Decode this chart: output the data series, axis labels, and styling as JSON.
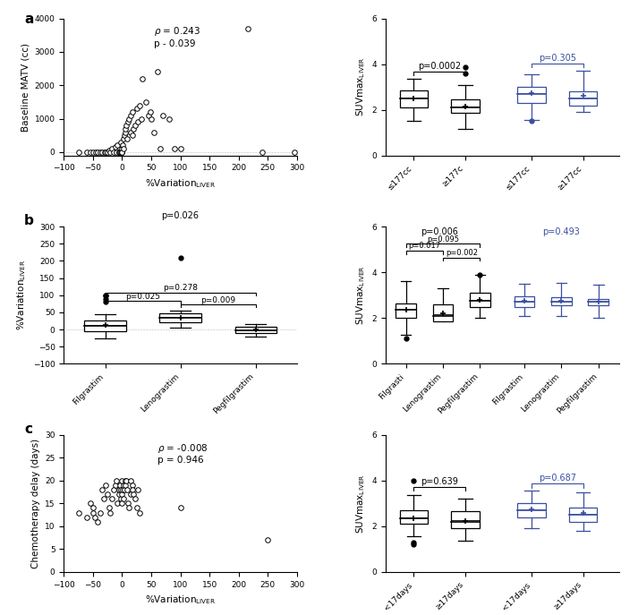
{
  "panel_a_scatter_x": [
    -75,
    -60,
    -55,
    -50,
    -45,
    -42,
    -38,
    -35,
    -30,
    -28,
    -25,
    -22,
    -20,
    -18,
    -15,
    -12,
    -10,
    -8,
    -6,
    -5,
    -4,
    -3,
    -2,
    -1,
    0,
    0,
    0,
    1,
    2,
    3,
    4,
    5,
    6,
    7,
    8,
    10,
    12,
    14,
    15,
    17,
    18,
    20,
    22,
    25,
    27,
    30,
    33,
    35,
    40,
    45,
    48,
    50,
    55,
    60,
    65,
    70,
    80,
    90,
    100,
    215,
    240,
    295
  ],
  "panel_a_scatter_y": [
    0,
    0,
    0,
    0,
    0,
    0,
    0,
    0,
    0,
    0,
    0,
    50,
    0,
    100,
    0,
    150,
    0,
    200,
    0,
    0,
    0,
    300,
    0,
    0,
    0,
    100,
    0,
    200,
    100,
    400,
    500,
    600,
    700,
    800,
    400,
    900,
    1000,
    600,
    1100,
    1200,
    500,
    700,
    800,
    1300,
    900,
    1400,
    1000,
    2200,
    1500,
    1100,
    1200,
    1000,
    600,
    2400,
    100,
    1100,
    1000,
    100,
    100,
    3700,
    0,
    0
  ],
  "panel_a_bk_q1": [
    2.1,
    1.85
  ],
  "panel_a_bk_med": [
    2.5,
    2.1
  ],
  "panel_a_bk_q3": [
    2.85,
    2.45
  ],
  "panel_a_bk_wlo": [
    1.5,
    1.15
  ],
  "panel_a_bk_whi": [
    3.35,
    3.1
  ],
  "panel_a_bk_mean": [
    2.5,
    2.15
  ],
  "panel_a_bk_out": [
    [],
    [
      3.85,
      3.6
    ]
  ],
  "panel_a_bl_q1": [
    2.3,
    2.2
  ],
  "panel_a_bl_med": [
    2.7,
    2.5
  ],
  "panel_a_bl_q3": [
    3.0,
    2.8
  ],
  "panel_a_bl_wlo": [
    1.55,
    1.9
  ],
  "panel_a_bl_whi": [
    3.55,
    3.7
  ],
  "panel_a_bl_mean": [
    2.75,
    2.6
  ],
  "panel_a_bl_out": [
    [
      1.5
    ],
    []
  ],
  "panel_b_bk_q1": [
    -5,
    20,
    -10
  ],
  "panel_b_bk_med": [
    10,
    35,
    -3
  ],
  "panel_b_bk_q3": [
    25,
    47,
    8
  ],
  "panel_b_bk_wlo": [
    -25,
    5,
    -22
  ],
  "panel_b_bk_whi": [
    45,
    55,
    17
  ],
  "panel_b_bk_mean": [
    12,
    35,
    0
  ],
  "panel_b_bk_out": [
    [
      80,
      90,
      100,
      100
    ],
    [
      210
    ],
    []
  ],
  "panel_b_bl_bk_q1": [
    2.0,
    1.85,
    2.5
  ],
  "panel_b_bl_bk_med": [
    2.35,
    2.1,
    2.75
  ],
  "panel_b_bl_bk_q3": [
    2.65,
    2.6,
    3.1
  ],
  "panel_b_bl_bk_wlo": [
    1.25,
    1.9,
    2.0
  ],
  "panel_b_bl_bk_whi": [
    3.6,
    3.3,
    3.9
  ],
  "panel_b_bl_bk_mean": [
    2.35,
    2.2,
    2.8
  ],
  "panel_b_bl_bk_out": [
    [
      1.1
    ],
    [],
    [
      3.9
    ]
  ],
  "panel_b_bl_bl_q1": [
    2.5,
    2.55,
    2.55
  ],
  "panel_b_bl_bl_med": [
    2.7,
    2.7,
    2.7
  ],
  "panel_b_bl_bl_q3": [
    2.95,
    2.9,
    2.85
  ],
  "panel_b_bl_bl_wlo": [
    2.1,
    2.1,
    2.0
  ],
  "panel_b_bl_bl_whi": [
    3.5,
    3.55,
    3.45
  ],
  "panel_b_bl_bl_mean": [
    2.75,
    2.75,
    2.7
  ],
  "panel_b_bl_bl_out": [
    [],
    [],
    []
  ],
  "panel_c_scatter_x": [
    -75,
    -60,
    -55,
    -50,
    -50,
    -47,
    -42,
    -38,
    -35,
    -32,
    -28,
    -25,
    -22,
    -20,
    -18,
    -15,
    -12,
    -10,
    -8,
    -6,
    -5,
    -4,
    -3,
    -2,
    -1,
    0,
    0,
    1,
    2,
    3,
    4,
    5,
    6,
    7,
    8,
    10,
    12,
    14,
    15,
    17,
    18,
    20,
    22,
    25,
    27,
    30,
    100,
    250
  ],
  "panel_c_scatter_y": [
    13,
    12,
    15,
    14,
    13,
    12,
    11,
    13,
    18,
    16,
    19,
    17,
    14,
    13,
    16,
    18,
    19,
    20,
    15,
    17,
    18,
    19,
    16,
    18,
    20,
    15,
    17,
    18,
    19,
    16,
    18,
    20,
    19,
    20,
    18,
    15,
    14,
    17,
    20,
    19,
    18,
    17,
    16,
    14,
    18,
    13,
    14,
    7
  ],
  "panel_c_bk_q1": [
    2.1,
    1.9
  ],
  "panel_c_bk_med": [
    2.35,
    2.2
  ],
  "panel_c_bk_q3": [
    2.7,
    2.65
  ],
  "panel_c_bk_wlo": [
    1.55,
    1.35
  ],
  "panel_c_bk_whi": [
    3.35,
    3.2
  ],
  "panel_c_bk_mean": [
    2.35,
    2.25
  ],
  "panel_c_bk_out": [
    [
      1.2,
      1.3,
      4.0
    ],
    []
  ],
  "panel_c_bl_q1": [
    2.4,
    2.2
  ],
  "panel_c_bl_med": [
    2.7,
    2.5
  ],
  "panel_c_bl_q3": [
    3.0,
    2.8
  ],
  "panel_c_bl_wlo": [
    1.9,
    1.8
  ],
  "panel_c_bl_whi": [
    3.55,
    3.5
  ],
  "panel_c_bl_mean": [
    2.75,
    2.6
  ],
  "panel_c_bl_out": [
    [],
    []
  ],
  "blue": "#3a4fa0",
  "black": "#1a1a1a",
  "bg": "#ffffff"
}
